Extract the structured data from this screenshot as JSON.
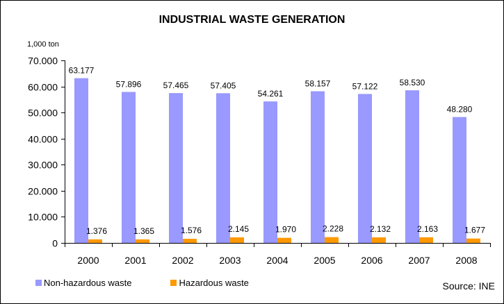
{
  "chart_data": {
    "type": "bar",
    "title": "INDUSTRIAL WASTE GENERATION",
    "ylabel": "1,000 ton",
    "xlabel": "",
    "ylim": [
      0,
      70000
    ],
    "yticks": [
      0,
      10000,
      20000,
      30000,
      40000,
      50000,
      60000,
      70000
    ],
    "ytick_labels": [
      "0",
      "10.000",
      "20.000",
      "30.000",
      "40.000",
      "50.000",
      "60.000",
      "70.000"
    ],
    "categories": [
      "2000",
      "2001",
      "2002",
      "2003",
      "2004",
      "2005",
      "2006",
      "2007",
      "2008"
    ],
    "series": [
      {
        "name": "Non-hazardous waste",
        "color": "#9999ff",
        "values": [
          63177,
          57896,
          57465,
          57405,
          54261,
          58157,
          57122,
          58530,
          48280
        ],
        "labels": [
          "63.177",
          "57.896",
          "57.465",
          "57.405",
          "54.261",
          "58.157",
          "57.122",
          "58.530",
          "48.280"
        ]
      },
      {
        "name": "Hazardous waste",
        "color": "#ff9900",
        "values": [
          1376,
          1365,
          1576,
          2145,
          1970,
          2228,
          2132,
          2163,
          1677
        ],
        "labels": [
          "1.376",
          "1.365",
          "1.576",
          "2.145",
          "1.970",
          "2.228",
          "2.132",
          "2.163",
          "1.677"
        ]
      }
    ],
    "grid": false,
    "legend_position": "bottom-left",
    "source": "Source: INE"
  }
}
